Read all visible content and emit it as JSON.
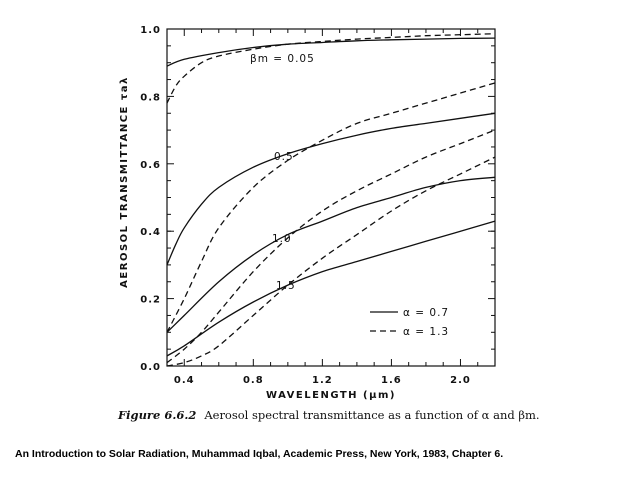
{
  "chart_data": {
    "type": "line",
    "xlabel": "WAVELENGTH (μm)",
    "ylabel": "AEROSOL TRANSMITTANCE τaλ",
    "xlim": [
      0.3,
      2.2
    ],
    "ylim": [
      0,
      1.0
    ],
    "xticks": [
      0.4,
      0.8,
      1.2,
      1.6,
      2.0
    ],
    "xtick_labels": [
      "0.4",
      "0.8",
      "1.2",
      "1.6",
      "2.0"
    ],
    "yticks": [
      0.0,
      0.2,
      0.4,
      0.6,
      0.8,
      1.0
    ],
    "ytick_labels": [
      "0.0",
      "0.2",
      "0.4",
      "0.6",
      "0.8",
      "1.0"
    ],
    "grid": false,
    "legend_position": "lower-right",
    "legend": [
      {
        "label": "α = 0.7",
        "style": "solid"
      },
      {
        "label": "α = 1.3",
        "style": "dashed"
      }
    ],
    "annotations": [
      "βm = 0.05",
      "0.5",
      "1.0",
      "1.5"
    ],
    "series": [
      {
        "alpha": 0.7,
        "beta": 0.05,
        "style": "solid",
        "x": [
          0.3,
          0.4,
          0.6,
          0.8,
          1.0,
          1.2,
          1.4,
          1.6,
          1.8,
          2.0,
          2.2
        ],
        "y": [
          0.89,
          0.91,
          0.93,
          0.945,
          0.955,
          0.96,
          0.965,
          0.968,
          0.97,
          0.972,
          0.973
        ]
      },
      {
        "alpha": 1.3,
        "beta": 0.05,
        "style": "dashed",
        "x": [
          0.3,
          0.35,
          0.4,
          0.5,
          0.6,
          0.8,
          1.0,
          1.2,
          1.4,
          1.6,
          1.8,
          2.0,
          2.2
        ],
        "y": [
          0.78,
          0.83,
          0.86,
          0.9,
          0.92,
          0.94,
          0.955,
          0.963,
          0.97,
          0.975,
          0.98,
          0.983,
          0.986
        ]
      },
      {
        "alpha": 0.7,
        "beta": 0.5,
        "style": "solid",
        "x": [
          0.3,
          0.35,
          0.4,
          0.5,
          0.6,
          0.8,
          1.0,
          1.2,
          1.4,
          1.6,
          1.8,
          2.0,
          2.2
        ],
        "y": [
          0.3,
          0.36,
          0.41,
          0.48,
          0.53,
          0.59,
          0.63,
          0.66,
          0.685,
          0.705,
          0.72,
          0.735,
          0.75
        ]
      },
      {
        "alpha": 1.3,
        "beta": 0.5,
        "style": "dashed",
        "x": [
          0.3,
          0.4,
          0.5,
          0.6,
          0.8,
          1.0,
          1.2,
          1.4,
          1.6,
          1.8,
          2.0,
          2.2
        ],
        "y": [
          0.1,
          0.2,
          0.31,
          0.41,
          0.53,
          0.61,
          0.67,
          0.72,
          0.75,
          0.78,
          0.81,
          0.84
        ]
      },
      {
        "alpha": 0.7,
        "beta": 1.0,
        "style": "solid",
        "x": [
          0.3,
          0.4,
          0.6,
          0.8,
          1.0,
          1.2,
          1.4,
          1.6,
          1.8,
          2.0,
          2.2
        ],
        "y": [
          0.1,
          0.15,
          0.25,
          0.33,
          0.39,
          0.43,
          0.47,
          0.5,
          0.53,
          0.55,
          0.56
        ]
      },
      {
        "alpha": 1.3,
        "beta": 1.0,
        "style": "dashed",
        "x": [
          0.3,
          0.4,
          0.5,
          0.6,
          0.8,
          1.0,
          1.2,
          1.4,
          1.6,
          1.8,
          2.0,
          2.2
        ],
        "y": [
          0.01,
          0.05,
          0.1,
          0.16,
          0.28,
          0.38,
          0.46,
          0.52,
          0.57,
          0.62,
          0.66,
          0.7
        ]
      },
      {
        "alpha": 0.7,
        "beta": 1.5,
        "style": "solid",
        "x": [
          0.3,
          0.4,
          0.6,
          0.8,
          1.0,
          1.2,
          1.4,
          1.6,
          1.8,
          2.0,
          2.2
        ],
        "y": [
          0.03,
          0.06,
          0.13,
          0.19,
          0.24,
          0.28,
          0.31,
          0.34,
          0.37,
          0.4,
          0.43
        ]
      },
      {
        "alpha": 1.3,
        "beta": 1.5,
        "style": "dashed",
        "x": [
          0.3,
          0.4,
          0.5,
          0.6,
          0.8,
          1.0,
          1.2,
          1.4,
          1.6,
          1.8,
          2.0,
          2.2
        ],
        "y": [
          0.0,
          0.01,
          0.03,
          0.06,
          0.15,
          0.24,
          0.32,
          0.39,
          0.46,
          0.52,
          0.57,
          0.62
        ]
      }
    ]
  },
  "caption": {
    "figure_label": "Figure 6.6.2",
    "text": "Aerosol spectral transmittance as a function of α and βm."
  },
  "source": "An Introduction to Solar Radiation, Muhammad Iqbal, Academic Press, New York, 1983, Chapter 6."
}
